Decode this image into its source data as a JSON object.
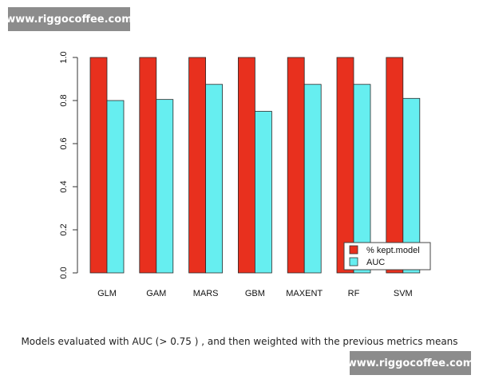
{
  "watermark": {
    "top_text": "www.riggocoffee.com",
    "bottom_text": "www.riggocoffee.com"
  },
  "caption": "Models evaluated with AUC (> 0.75 ) , and then weighted with the previous metrics means",
  "chart_data": {
    "type": "bar",
    "title": "",
    "xlabel": "",
    "ylabel": "",
    "ylim": [
      0,
      1
    ],
    "yticks": [
      0.0,
      0.2,
      0.4,
      0.6,
      0.8,
      1.0
    ],
    "ytick_labels": [
      "0.0",
      "0.2",
      "0.4",
      "0.6",
      "0.8",
      "1.0"
    ],
    "categories": [
      "GLM",
      "GAM",
      "MARS",
      "GBM",
      "MAXENT",
      "RF",
      "SVM"
    ],
    "series": [
      {
        "name": "% kept.model",
        "color": "#e8301e",
        "values": [
          1.0,
          1.0,
          1.0,
          1.0,
          1.0,
          1.0,
          1.0
        ]
      },
      {
        "name": "AUC",
        "color": "#66eef0",
        "values": [
          0.8,
          0.805,
          0.875,
          0.75,
          0.875,
          0.875,
          0.81
        ]
      }
    ],
    "legend_position": "bottom-right",
    "grid": false
  }
}
